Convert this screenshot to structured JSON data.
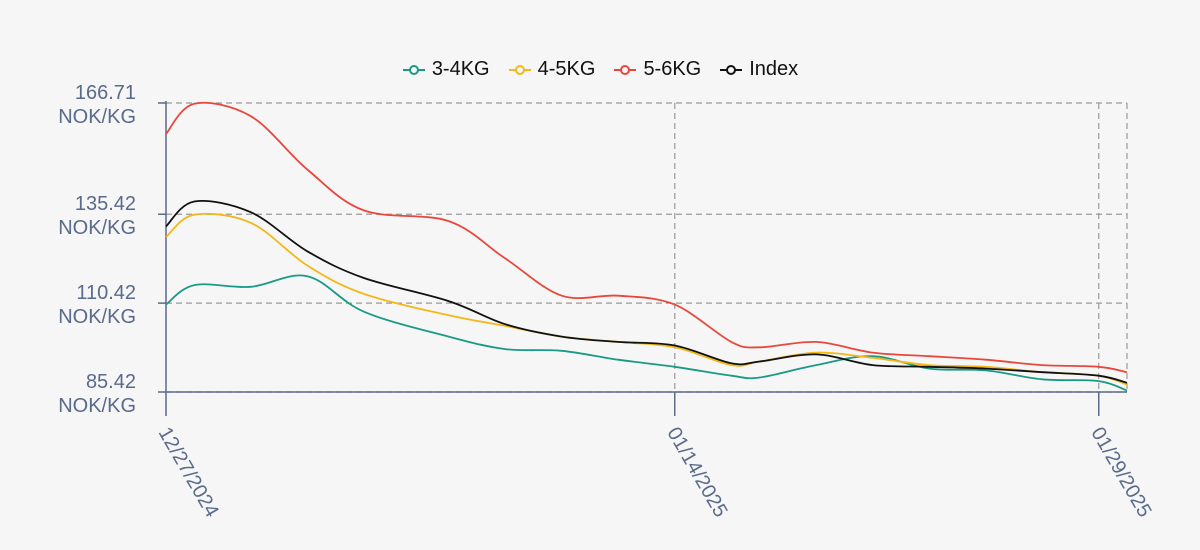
{
  "chart_data": {
    "type": "line",
    "title": "",
    "xlabel": "",
    "ylabel": "",
    "x": [
      "2024-12-27",
      "2024-12-28",
      "2024-12-30",
      "2025-01-01",
      "2025-01-03",
      "2025-01-06",
      "2025-01-08",
      "2025-01-10",
      "2025-01-12",
      "2025-01-14",
      "2025-01-16",
      "2025-01-17",
      "2025-01-19",
      "2025-01-21",
      "2025-01-23",
      "2025-01-25",
      "2025-01-27",
      "2025-01-29",
      "2025-01-30"
    ],
    "x_ticks": [
      "12/27/2024",
      "01/14/2025",
      "01/29/2025"
    ],
    "y_ticks": [
      {
        "value": 85.42,
        "line1": "85.42",
        "line2": "NOK/KG"
      },
      {
        "value": 110.42,
        "line1": "110.42",
        "line2": "NOK/KG"
      },
      {
        "value": 135.42,
        "line1": "135.42",
        "line2": "NOK/KG"
      },
      {
        "value": 166.71,
        "line1": "166.71",
        "line2": "NOK/KG"
      }
    ],
    "ylim": [
      85.42,
      166.71
    ],
    "grid": true,
    "legend_position": "top-center",
    "series": [
      {
        "name": "3-4KG",
        "color": "#1a9a84",
        "values": [
          110.0,
          115.5,
          115.0,
          118.0,
          108.0,
          101.0,
          97.5,
          97.0,
          94.5,
          92.5,
          90.0,
          89.5,
          93.0,
          95.5,
          92.0,
          91.5,
          89.0,
          88.5,
          85.8
        ]
      },
      {
        "name": "4-5KG",
        "color": "#f2b81a",
        "values": [
          129.0,
          135.3,
          133.0,
          121.0,
          113.0,
          107.0,
          104.0,
          101.0,
          99.5,
          98.0,
          93.0,
          94.0,
          96.5,
          95.0,
          93.0,
          92.5,
          91.0,
          90.0,
          87.5
        ]
      },
      {
        "name": "5-6KG",
        "color": "#e8483b",
        "values": [
          158.0,
          166.5,
          163.0,
          148.0,
          136.5,
          133.5,
          123.0,
          112.5,
          112.5,
          110.0,
          99.5,
          98.0,
          99.5,
          96.5,
          95.5,
          94.5,
          93.0,
          92.5,
          91.0
        ]
      },
      {
        "name": "Index",
        "color": "#111111",
        "values": [
          132.0,
          139.0,
          136.0,
          125.0,
          117.5,
          111.0,
          104.5,
          101.0,
          99.5,
          98.5,
          93.5,
          94.0,
          96.0,
          93.0,
          92.5,
          92.0,
          91.0,
          90.0,
          88.0
        ]
      }
    ]
  }
}
